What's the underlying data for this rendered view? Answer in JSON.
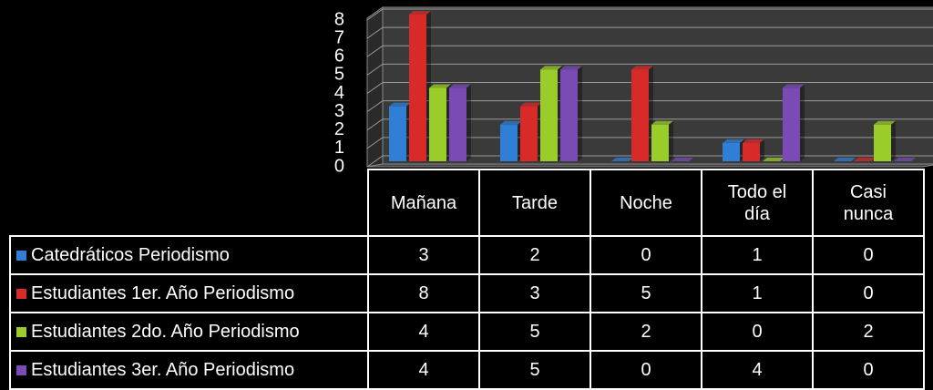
{
  "chart_data": {
    "type": "bar",
    "categories": [
      "Mañana",
      "Tarde",
      "Noche",
      "Todo el día",
      "Casi nunca"
    ],
    "series": [
      {
        "name": "Catedráticos Periodismo",
        "color": "#2f7fd6",
        "values": [
          3,
          2,
          0,
          1,
          0
        ]
      },
      {
        "name": "Estudiantes 1er. Año Periodismo",
        "color": "#d92a2a",
        "values": [
          8,
          3,
          5,
          1,
          0
        ]
      },
      {
        "name": "Estudiantes 2do. Año Periodismo",
        "color": "#9acd2a",
        "values": [
          4,
          5,
          2,
          0,
          2
        ]
      },
      {
        "name": "Estudiantes 3er. Año Periodismo",
        "color": "#7a4bb5",
        "values": [
          4,
          5,
          0,
          4,
          0
        ]
      }
    ],
    "ylim": [
      0,
      8
    ],
    "yticks": [
      0,
      1,
      2,
      3,
      4,
      5,
      6,
      7,
      8
    ],
    "grid": true
  }
}
